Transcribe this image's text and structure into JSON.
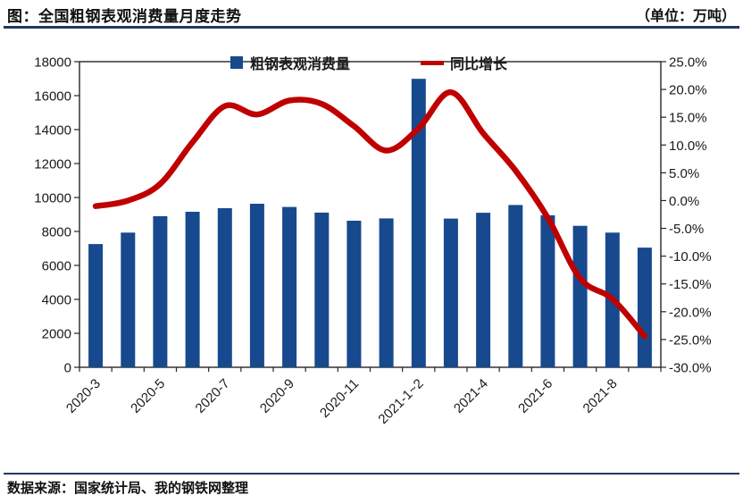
{
  "header": {
    "title": "图：全国粗钢表观消费量月度走势",
    "unit": "（单位：万吨）"
  },
  "footer": {
    "source": "数据来源：国家统计局、我的钢铁网整理"
  },
  "colors": {
    "bar": "#17498E",
    "line": "#C00000",
    "rule": "#1F3864",
    "axis_line": "#262626",
    "text": "#1a1a1a"
  },
  "chart_data": {
    "type": "bar",
    "title": "全国粗钢表观消费量月度走势",
    "unit": "万吨",
    "grid": false,
    "legend_position": "top",
    "categories": [
      "2020-3",
      "2020-4",
      "2020-5",
      "2020-6",
      "2020-7",
      "2020-8",
      "2020-9",
      "2020-10",
      "2020-11",
      "2020-12",
      "2021-1~2",
      "2021-3",
      "2021-4",
      "2021-5",
      "2021-6",
      "2021-7",
      "2021-8",
      "2021-9"
    ],
    "x_axis_labels_visible": [
      "2020-3",
      "2020-5",
      "2020-7",
      "2020-9",
      "2020-11",
      "2021-1~2",
      "2021-4",
      "2021-6",
      "2021-8"
    ],
    "series": [
      {
        "name": "粗钢表观消费量",
        "type": "bar",
        "axis": "left",
        "color": "#17498E",
        "values": [
          7260,
          7930,
          8900,
          9160,
          9370,
          9630,
          9440,
          9110,
          8630,
          8770,
          16990,
          8760,
          9100,
          9560,
          8950,
          8330,
          7930,
          7050
        ]
      },
      {
        "name": "同比增长",
        "type": "line",
        "axis": "right",
        "color": "#C00000",
        "values_pct": [
          -1.0,
          0.0,
          3.0,
          10.5,
          17.0,
          15.5,
          18.0,
          17.4,
          13.4,
          9.0,
          13.0,
          19.5,
          12.1,
          5.4,
          -3.1,
          -14.0,
          -17.7,
          -24.4
        ]
      }
    ],
    "left_axis": {
      "min": 0,
      "max": 18000,
      "step": 2000,
      "tick_labels": [
        "18000",
        "16000",
        "14000",
        "12000",
        "10000",
        "8000",
        "6000",
        "4000",
        "2000",
        "0"
      ]
    },
    "right_axis": {
      "min": -30,
      "max": 25,
      "step": 5,
      "tick_labels": [
        "25.0%",
        "20.0%",
        "15.0%",
        "10.0%",
        "5.0%",
        "0.0%",
        "-5.0%",
        "-10.0%",
        "-15.0%",
        "-20.0%",
        "-25.0%",
        "-30.0%"
      ]
    }
  }
}
